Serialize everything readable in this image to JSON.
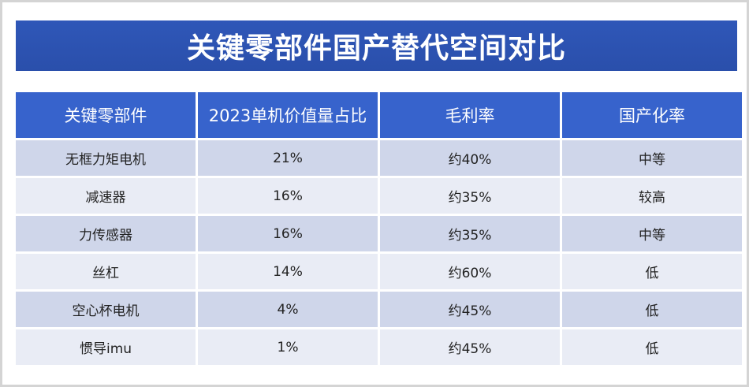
{
  "title": "关键零部件国产替代空间对比",
  "table": {
    "headers": [
      "关键零部件",
      "2023单机价值量占比",
      "毛利率",
      "国产化率"
    ],
    "rows": [
      [
        "无框力矩电机",
        "21%",
        "约40%",
        "中等"
      ],
      [
        "减速器",
        "16%",
        "约35%",
        "较高"
      ],
      [
        "力传感器",
        "16%",
        "约35%",
        "中等"
      ],
      [
        "丝杠",
        "14%",
        "约60%",
        "低"
      ],
      [
        "空心杯电机",
        "4%",
        "约45%",
        "低"
      ],
      [
        "惯导imu",
        "1%",
        "约45%",
        "低"
      ]
    ]
  },
  "colors": {
    "banner": "#2f57b8",
    "header": "#3763cc",
    "row_dark": "#cfd6ea",
    "row_light": "#e9ecf5"
  }
}
